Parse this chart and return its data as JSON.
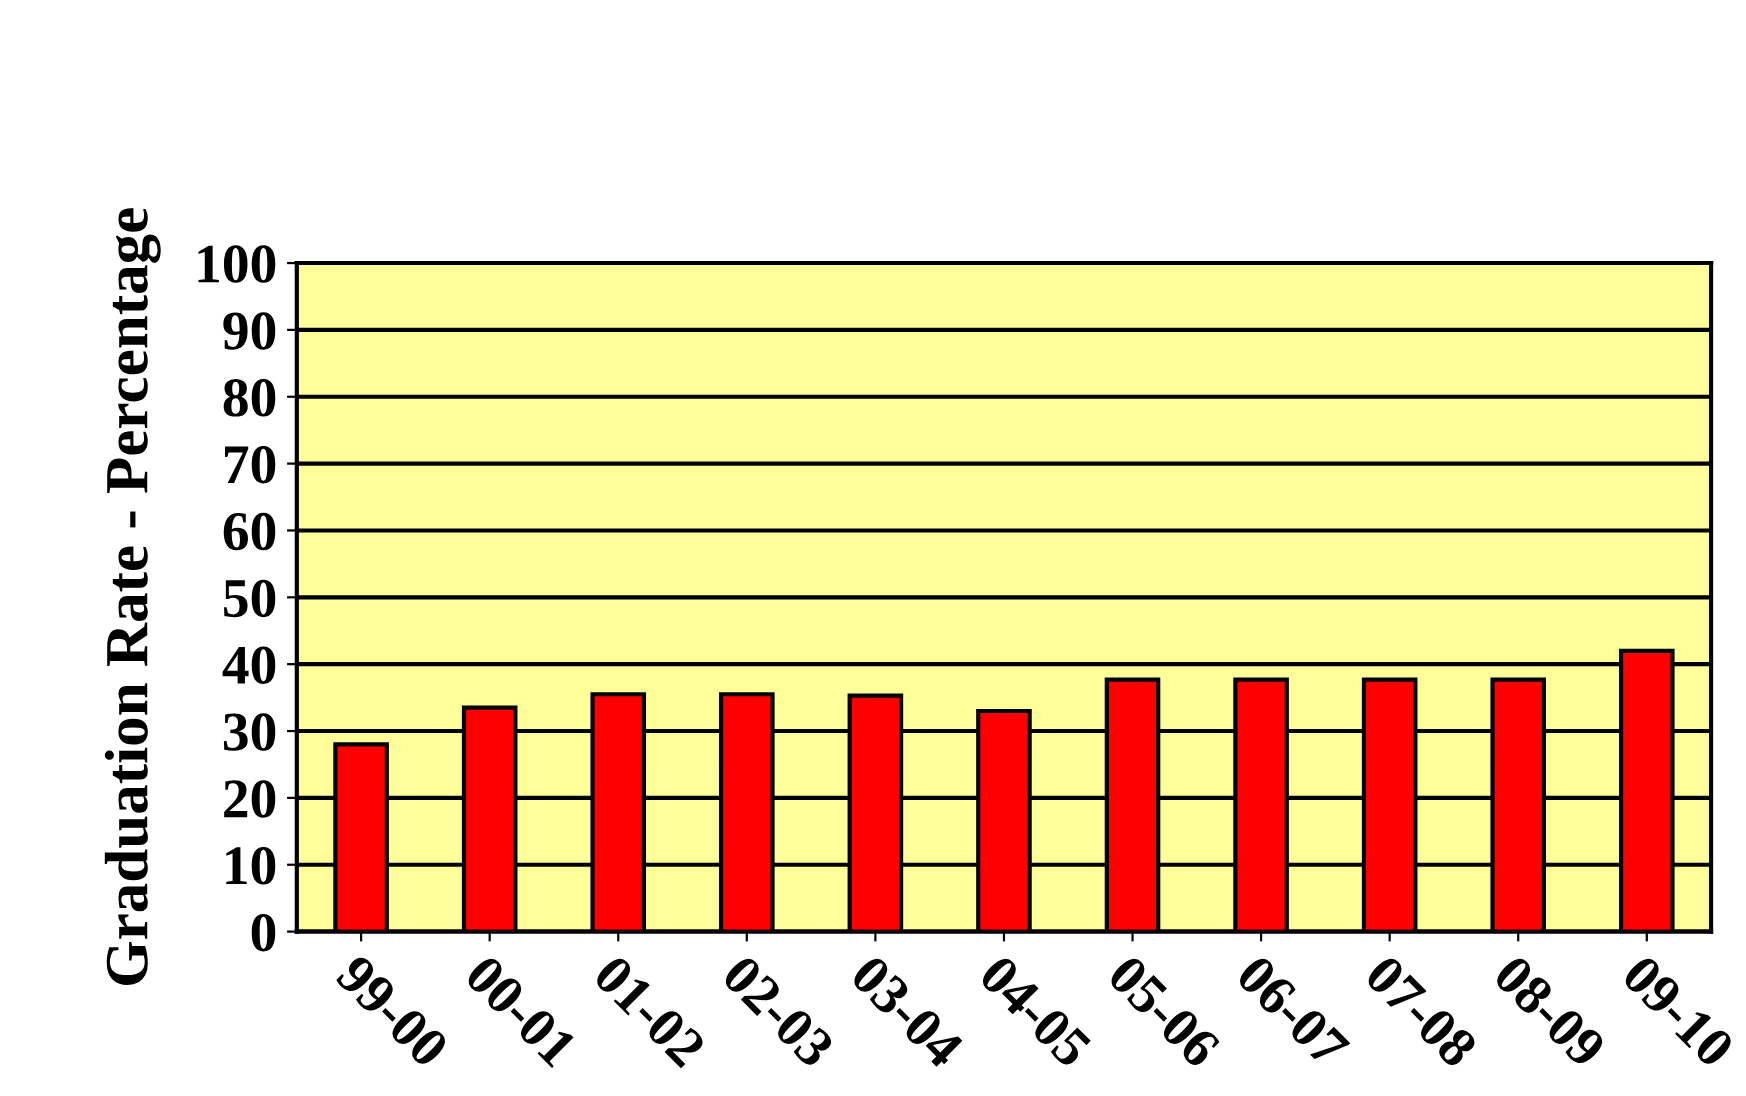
{
  "chart_data": {
    "type": "bar",
    "ylabel": "Graduation Rate - Percentage",
    "categories": [
      "99-00",
      "00-01",
      "01-02",
      "02-03",
      "03-04",
      "04-05",
      "05-06",
      "06-07",
      "07-08",
      "08-09",
      "09-10"
    ],
    "values": [
      28,
      33.5,
      35.5,
      35.5,
      35.3,
      33,
      37.7,
      37.7,
      37.7,
      37.7,
      42
    ],
    "color": "#ff0000",
    "ylim": [
      0,
      100
    ],
    "yticks": [
      0,
      10,
      20,
      30,
      40,
      50,
      60,
      70,
      80,
      90,
      100
    ],
    "grid": "y"
  }
}
